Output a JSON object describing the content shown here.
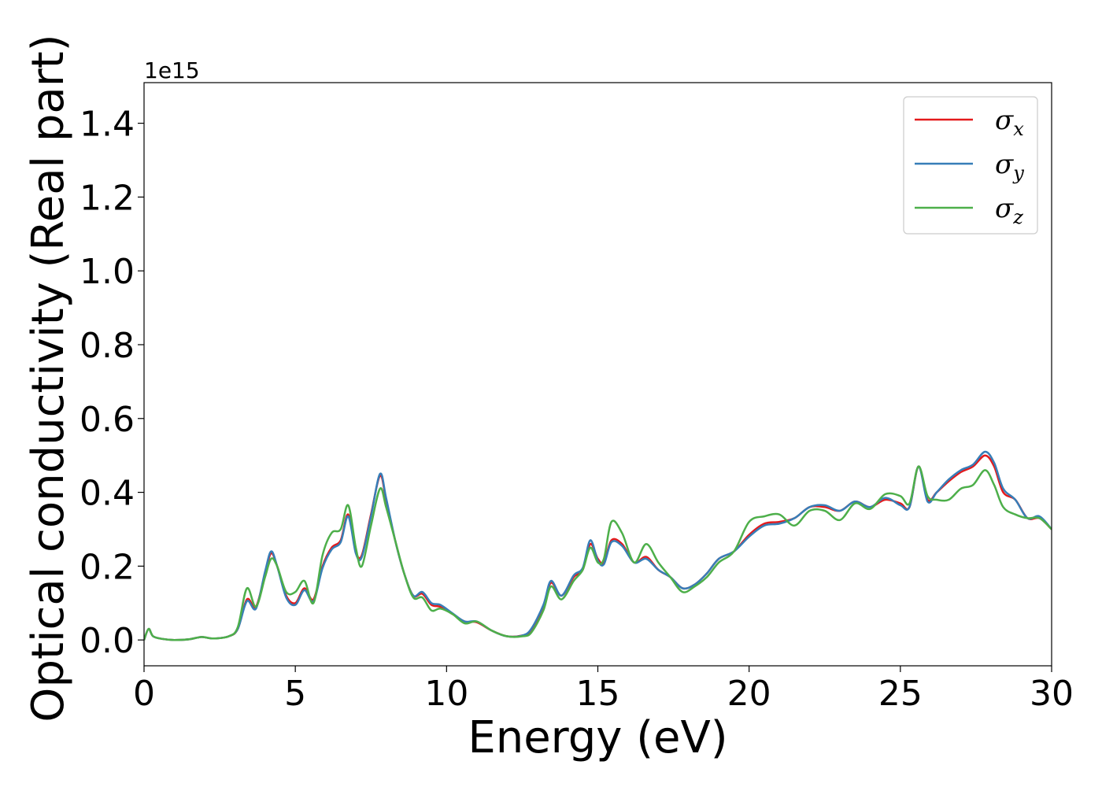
{
  "chart_data": {
    "type": "line",
    "title": "",
    "xlabel": "Energy (eV)",
    "ylabel": "Optical conductivity (Real part)",
    "y_offset_label": "1e15",
    "xlim": [
      0,
      30
    ],
    "ylim": [
      -0.07,
      1.51
    ],
    "xticks": [
      0,
      5,
      10,
      15,
      20,
      25,
      30
    ],
    "xtick_labels": [
      "0",
      "5",
      "10",
      "15",
      "20",
      "25",
      "30"
    ],
    "yticks": [
      0.0,
      0.2,
      0.4,
      0.6,
      0.8,
      1.0,
      1.2,
      1.4
    ],
    "ytick_labels": [
      "0.0",
      "0.2",
      "0.4",
      "0.6",
      "0.8",
      "1.0",
      "1.2",
      "1.4"
    ],
    "grid": false,
    "legend_position": "top-right",
    "series": [
      {
        "name": "σx",
        "legend_symbol": "σ",
        "legend_sub": "x",
        "color": "#e41a1c",
        "x": [
          0,
          0.15,
          0.3,
          0.6,
          1.0,
          1.5,
          1.9,
          2.3,
          2.8,
          3.1,
          3.4,
          3.7,
          4.0,
          4.2,
          4.4,
          4.7,
          5.0,
          5.3,
          5.6,
          5.9,
          6.2,
          6.5,
          6.75,
          7.0,
          7.2,
          7.5,
          7.8,
          8.0,
          8.3,
          8.6,
          8.9,
          9.2,
          9.5,
          9.8,
          10.2,
          10.6,
          11.0,
          11.5,
          12.0,
          12.5,
          12.8,
          13.2,
          13.45,
          13.8,
          14.2,
          14.5,
          14.75,
          15.0,
          15.2,
          15.45,
          15.8,
          16.2,
          16.6,
          17.0,
          17.4,
          17.8,
          18.2,
          18.6,
          19.0,
          19.5,
          20.0,
          20.5,
          21.0,
          21.5,
          22.0,
          22.5,
          23.0,
          23.5,
          24.0,
          24.5,
          25.0,
          25.3,
          25.6,
          25.9,
          26.2,
          26.6,
          27.0,
          27.4,
          27.8,
          28.1,
          28.4,
          28.8,
          29.2,
          29.6,
          30.0
        ],
        "y": [
          0.0,
          0.03,
          0.01,
          0.003,
          0.0,
          0.002,
          0.008,
          0.004,
          0.01,
          0.03,
          0.11,
          0.09,
          0.18,
          0.235,
          0.2,
          0.12,
          0.1,
          0.14,
          0.11,
          0.2,
          0.25,
          0.27,
          0.34,
          0.24,
          0.23,
          0.34,
          0.445,
          0.38,
          0.27,
          0.18,
          0.12,
          0.125,
          0.095,
          0.09,
          0.07,
          0.05,
          0.048,
          0.025,
          0.01,
          0.012,
          0.025,
          0.09,
          0.155,
          0.12,
          0.17,
          0.19,
          0.26,
          0.22,
          0.21,
          0.27,
          0.26,
          0.21,
          0.225,
          0.19,
          0.17,
          0.14,
          0.15,
          0.18,
          0.22,
          0.24,
          0.285,
          0.315,
          0.32,
          0.33,
          0.36,
          0.36,
          0.35,
          0.375,
          0.36,
          0.38,
          0.37,
          0.36,
          0.47,
          0.38,
          0.4,
          0.43,
          0.455,
          0.47,
          0.5,
          0.47,
          0.4,
          0.38,
          0.33,
          0.33,
          0.3
        ]
      },
      {
        "name": "σy",
        "legend_symbol": "σ",
        "legend_sub": "y",
        "color": "#377eb8",
        "x": [
          0,
          0.15,
          0.3,
          0.6,
          1.0,
          1.5,
          1.9,
          2.3,
          2.8,
          3.1,
          3.4,
          3.7,
          4.0,
          4.2,
          4.4,
          4.7,
          5.0,
          5.3,
          5.6,
          5.9,
          6.2,
          6.5,
          6.75,
          7.0,
          7.2,
          7.5,
          7.8,
          8.0,
          8.3,
          8.6,
          8.9,
          9.2,
          9.5,
          9.8,
          10.2,
          10.6,
          11.0,
          11.5,
          12.0,
          12.5,
          12.8,
          13.2,
          13.45,
          13.8,
          14.2,
          14.5,
          14.75,
          15.0,
          15.2,
          15.45,
          15.8,
          16.2,
          16.6,
          17.0,
          17.4,
          17.8,
          18.2,
          18.6,
          19.0,
          19.5,
          20.0,
          20.5,
          21.0,
          21.5,
          22.0,
          22.5,
          23.0,
          23.5,
          24.0,
          24.5,
          25.0,
          25.3,
          25.6,
          25.9,
          26.2,
          26.6,
          27.0,
          27.4,
          27.8,
          28.1,
          28.4,
          28.8,
          29.2,
          29.6,
          30.0
        ],
        "y": [
          0.0,
          0.03,
          0.01,
          0.003,
          0.0,
          0.002,
          0.008,
          0.004,
          0.01,
          0.03,
          0.105,
          0.085,
          0.185,
          0.24,
          0.2,
          0.115,
          0.095,
          0.135,
          0.105,
          0.195,
          0.245,
          0.265,
          0.335,
          0.235,
          0.225,
          0.335,
          0.45,
          0.385,
          0.27,
          0.18,
          0.12,
          0.13,
          0.1,
          0.095,
          0.072,
          0.05,
          0.05,
          0.025,
          0.01,
          0.012,
          0.03,
          0.095,
          0.16,
          0.12,
          0.175,
          0.195,
          0.27,
          0.215,
          0.205,
          0.265,
          0.255,
          0.21,
          0.22,
          0.19,
          0.17,
          0.14,
          0.15,
          0.18,
          0.22,
          0.24,
          0.28,
          0.31,
          0.315,
          0.33,
          0.36,
          0.365,
          0.35,
          0.375,
          0.36,
          0.385,
          0.365,
          0.36,
          0.47,
          0.375,
          0.4,
          0.435,
          0.46,
          0.475,
          0.51,
          0.48,
          0.41,
          0.38,
          0.33,
          0.335,
          0.3
        ]
      },
      {
        "name": "σz",
        "legend_symbol": "σ",
        "legend_sub": "z",
        "color": "#4daf4a",
        "x": [
          0,
          0.15,
          0.3,
          0.6,
          1.0,
          1.5,
          1.9,
          2.3,
          2.8,
          3.1,
          3.4,
          3.7,
          4.0,
          4.2,
          4.4,
          4.7,
          5.0,
          5.3,
          5.6,
          5.9,
          6.2,
          6.5,
          6.75,
          7.0,
          7.2,
          7.5,
          7.8,
          8.0,
          8.3,
          8.6,
          8.9,
          9.2,
          9.5,
          9.8,
          10.2,
          10.6,
          11.0,
          11.5,
          12.0,
          12.5,
          12.8,
          13.2,
          13.45,
          13.8,
          14.2,
          14.5,
          14.75,
          15.0,
          15.2,
          15.45,
          15.8,
          16.2,
          16.6,
          17.0,
          17.4,
          17.8,
          18.2,
          18.6,
          19.0,
          19.5,
          20.0,
          20.5,
          21.0,
          21.5,
          22.0,
          22.5,
          23.0,
          23.5,
          24.0,
          24.5,
          25.0,
          25.3,
          25.6,
          25.9,
          26.2,
          26.6,
          27.0,
          27.4,
          27.8,
          28.1,
          28.4,
          28.8,
          29.2,
          29.6,
          30.0
        ],
        "y": [
          0.0,
          0.03,
          0.01,
          0.003,
          0.0,
          0.002,
          0.008,
          0.004,
          0.01,
          0.035,
          0.14,
          0.09,
          0.17,
          0.22,
          0.2,
          0.13,
          0.13,
          0.16,
          0.1,
          0.23,
          0.29,
          0.3,
          0.365,
          0.25,
          0.2,
          0.31,
          0.41,
          0.36,
          0.27,
          0.18,
          0.115,
          0.115,
          0.08,
          0.085,
          0.07,
          0.045,
          0.05,
          0.025,
          0.01,
          0.01,
          0.02,
          0.08,
          0.145,
          0.11,
          0.16,
          0.19,
          0.25,
          0.21,
          0.22,
          0.32,
          0.29,
          0.21,
          0.26,
          0.21,
          0.17,
          0.13,
          0.145,
          0.17,
          0.21,
          0.24,
          0.32,
          0.335,
          0.34,
          0.31,
          0.35,
          0.35,
          0.325,
          0.37,
          0.355,
          0.395,
          0.39,
          0.37,
          0.47,
          0.39,
          0.38,
          0.38,
          0.41,
          0.42,
          0.46,
          0.42,
          0.36,
          0.34,
          0.33,
          0.33,
          0.3
        ]
      }
    ]
  }
}
